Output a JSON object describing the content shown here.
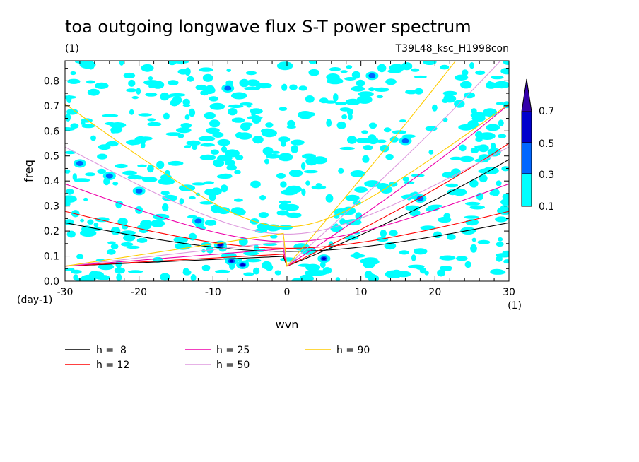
{
  "chart_data": {
    "type": "contour",
    "title": "toa outgoing longwave flux S-T power spectrum",
    "subtitle_left": "(1)",
    "subtitle_right": "T39L48_ksc_H1998con",
    "xlabel": "wvn",
    "ylabel": "freq",
    "x_unit": "(1)",
    "y_unit": "(day-1)",
    "xlim": [
      -30,
      30
    ],
    "ylim": [
      0,
      0.88
    ],
    "x_ticks": [
      -30,
      -20,
      -10,
      0,
      10,
      20,
      30
    ],
    "x_tick_labels": [
      "-30",
      "-20",
      "-10",
      "0",
      "10",
      "20",
      "30"
    ],
    "y_ticks": [
      0.0,
      0.1,
      0.2,
      0.3,
      0.4,
      0.5,
      0.6,
      0.7,
      0.8
    ],
    "y_tick_labels": [
      "0.0",
      "0.1",
      "0.2",
      "0.3",
      "0.4",
      "0.5",
      "0.6",
      "0.7",
      "0.8"
    ],
    "colorbar": {
      "levels": [
        "0.1",
        "0.3",
        "0.5",
        "0.7"
      ],
      "colors": [
        "#00ffff",
        "#0066ff",
        "#0000cc",
        "#3300aa"
      ]
    },
    "series": [
      {
        "name": "h =  8",
        "color": "#000000",
        "h": 8
      },
      {
        "name": "h = 12",
        "color": "#ff0000",
        "h": 12
      },
      {
        "name": "h = 25",
        "color": "#ee00aa",
        "h": 25
      },
      {
        "name": "h = 50",
        "color": "#dd99dd",
        "h": 50
      },
      {
        "name": "h = 90",
        "color": "#ffcc00",
        "h": 90
      }
    ]
  }
}
